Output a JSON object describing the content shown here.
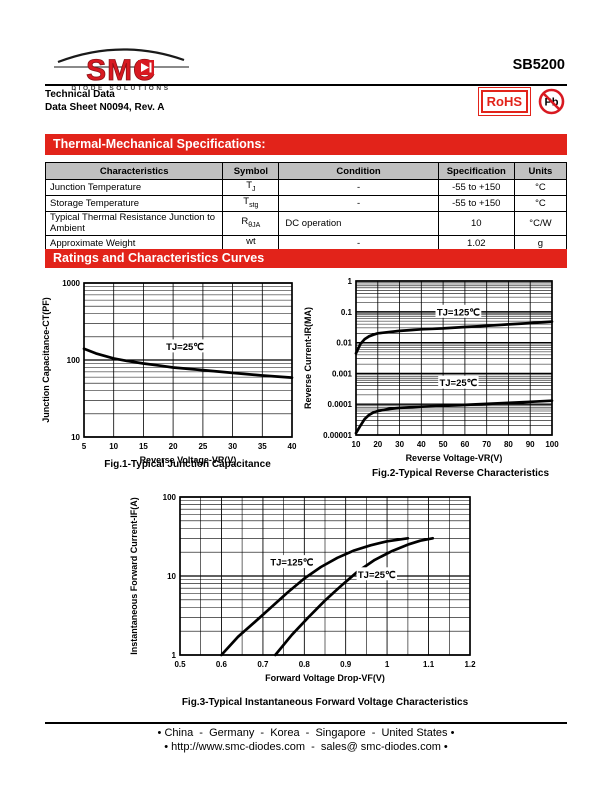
{
  "colors": {
    "accent_red": "#e2231a",
    "table_header_bg": "#c0c0c0"
  },
  "header": {
    "part_number": "SB5200",
    "doc_line1": "Technical Data",
    "doc_line2": "Data Sheet N0094, Rev. A",
    "logo": {
      "brand": "SMC",
      "tagline": "DIODE SOLUTIONS"
    },
    "badges": {
      "rohs_label": "RoHS",
      "pb_label": "Pb"
    }
  },
  "sections": {
    "thermal_title": "Thermal-Mechanical Specifications:",
    "curves_title": "Ratings and Characteristics Curves"
  },
  "spec_table": {
    "headers": [
      "Characteristics",
      "Symbol",
      "Condition",
      "Specification",
      "Units"
    ],
    "rows": [
      {
        "characteristic": "Junction Temperature",
        "symbol_base": "T",
        "symbol_sub": "J",
        "condition": "-",
        "specification": "-55 to +150",
        "units": "°C"
      },
      {
        "characteristic": "Storage Temperature",
        "symbol_base": "T",
        "symbol_sub": "stg",
        "condition": "-",
        "specification": "-55 to +150",
        "units": "°C"
      },
      {
        "characteristic": "Typical Thermal Resistance Junction to Ambient",
        "symbol_base": "R",
        "symbol_sub": "θJA",
        "condition": "DC operation",
        "specification": "10",
        "units": "°C/W"
      },
      {
        "characteristic": "Approximate Weight",
        "symbol_base": "wt",
        "symbol_sub": "",
        "condition": "-",
        "specification": "1.02",
        "units": "g"
      }
    ]
  },
  "chart_data": [
    {
      "type": "line",
      "title": "Fig.1-Typical Junction Capacitance",
      "xlabel": "Reverse Voltage-VR(V)",
      "ylabel": "Junction Capacitance-CT(PF)",
      "xlim": [
        5,
        40
      ],
      "x_ticks": [
        5,
        10,
        15,
        20,
        25,
        30,
        35,
        40
      ],
      "x_tick_labels": [
        "5",
        "10",
        "15",
        "20",
        "25",
        "30",
        "35",
        "40"
      ],
      "x_minor_step": 0,
      "y_scale": "log",
      "ylim": [
        10,
        1000
      ],
      "y_ticks": [
        10,
        100,
        1000
      ],
      "y_tick_labels": [
        "10",
        "100",
        "1000"
      ],
      "grid": true,
      "series": [
        {
          "name": "TJ=25℃",
          "label_at": [
            22,
            150
          ],
          "points": [
            [
              5,
              140
            ],
            [
              7,
              122
            ],
            [
              10,
              105
            ],
            [
              12,
              98
            ],
            [
              15,
              90
            ],
            [
              18,
              84
            ],
            [
              20,
              80
            ],
            [
              25,
              74
            ],
            [
              30,
              68
            ],
            [
              35,
              63
            ],
            [
              40,
              59
            ]
          ]
        }
      ]
    },
    {
      "type": "line",
      "title": "Fig.2-Typical Reverse Characteristics",
      "xlabel": "Reverse Voltage-VR(V)",
      "ylabel": "Reverse Current-IR(MA)",
      "xlim": [
        10,
        100
      ],
      "x_ticks": [
        10,
        20,
        30,
        40,
        50,
        60,
        70,
        80,
        90,
        100
      ],
      "x_tick_labels": [
        "10",
        "20",
        "30",
        "40",
        "50",
        "60",
        "70",
        "80",
        "90",
        "100"
      ],
      "x_minor_step": 0,
      "y_scale": "log",
      "ylim": [
        1e-05,
        1
      ],
      "y_ticks": [
        1,
        0.1,
        0.01,
        0.001,
        0.0001,
        1e-05
      ],
      "y_tick_labels": [
        "1",
        "0.1",
        "0.01",
        "0.001",
        "0.0001",
        "0.00001"
      ],
      "grid": true,
      "series": [
        {
          "name": "TJ=125℃",
          "label_at": [
            57,
            0.1
          ],
          "points": [
            [
              10,
              0.0045
            ],
            [
              12,
              0.009
            ],
            [
              14,
              0.013
            ],
            [
              16,
              0.016
            ],
            [
              18,
              0.018
            ],
            [
              20,
              0.02
            ],
            [
              25,
              0.022
            ],
            [
              30,
              0.024
            ],
            [
              35,
              0.0255
            ],
            [
              40,
              0.027
            ],
            [
              50,
              0.029
            ],
            [
              60,
              0.032
            ],
            [
              70,
              0.035
            ],
            [
              80,
              0.039
            ],
            [
              90,
              0.043
            ],
            [
              100,
              0.048
            ]
          ]
        },
        {
          "name": "TJ=25℃",
          "label_at": [
            57,
            0.0005
          ],
          "points": [
            [
              10,
              1.15e-05
            ],
            [
              12,
              2e-05
            ],
            [
              14,
              3.3e-05
            ],
            [
              16,
              4.5e-05
            ],
            [
              18,
              5.4e-05
            ],
            [
              20,
              6e-05
            ],
            [
              25,
              7e-05
            ],
            [
              30,
              7.6e-05
            ],
            [
              40,
              8.3e-05
            ],
            [
              50,
              8.8e-05
            ],
            [
              60,
              9.5e-05
            ],
            [
              70,
              0.000102
            ],
            [
              80,
              0.00011
            ],
            [
              90,
              0.00012
            ],
            [
              100,
              0.00013
            ]
          ]
        }
      ]
    },
    {
      "type": "line",
      "title": "Fig.3-Typical Instantaneous Forward Voltage Characteristics",
      "xlabel": "Forward Voltage Drop-VF(V)",
      "ylabel": "Instantaneous Forward Current-IF(A)",
      "xlim": [
        0.5,
        1.2
      ],
      "x_ticks": [
        0.5,
        0.6,
        0.7,
        0.8,
        0.9,
        1,
        1.1,
        1.2
      ],
      "x_tick_labels": [
        "0.5",
        "0.6",
        "0.7",
        "0.8",
        "0.9",
        "1",
        "1.1",
        "1.2"
      ],
      "x_minor_step": 0.05,
      "y_scale": "log",
      "ylim": [
        1,
        100
      ],
      "y_ticks": [
        1,
        10,
        100
      ],
      "y_tick_labels": [
        "1",
        "10",
        "100"
      ],
      "grid": true,
      "series": [
        {
          "name": "TJ=125℃",
          "label_at": [
            0.77,
            15
          ],
          "points": [
            [
              0.6,
              1
            ],
            [
              0.64,
              1.7
            ],
            [
              0.68,
              2.6
            ],
            [
              0.72,
              4
            ],
            [
              0.76,
              6.2
            ],
            [
              0.8,
              9.3
            ],
            [
              0.84,
              13
            ],
            [
              0.88,
              17
            ],
            [
              0.92,
              21
            ],
            [
              0.96,
              24.5
            ],
            [
              1.0,
              27.5
            ],
            [
              1.05,
              30
            ]
          ]
        },
        {
          "name": "TJ=25℃",
          "label_at": [
            0.975,
            10.5
          ],
          "points": [
            [
              0.73,
              1
            ],
            [
              0.77,
              1.8
            ],
            [
              0.81,
              3
            ],
            [
              0.85,
              4.9
            ],
            [
              0.89,
              7.6
            ],
            [
              0.93,
              11.5
            ],
            [
              0.97,
              16
            ],
            [
              1.01,
              20.5
            ],
            [
              1.05,
              25
            ],
            [
              1.08,
              28
            ],
            [
              1.11,
              30
            ]
          ]
        }
      ]
    }
  ],
  "footer": {
    "regions": "• China  -  Germany  -  Korea  -  Singapore  -  United States •",
    "contact": "• http://www.smc-diodes.com  -  sales@ smc-diodes.com •"
  }
}
